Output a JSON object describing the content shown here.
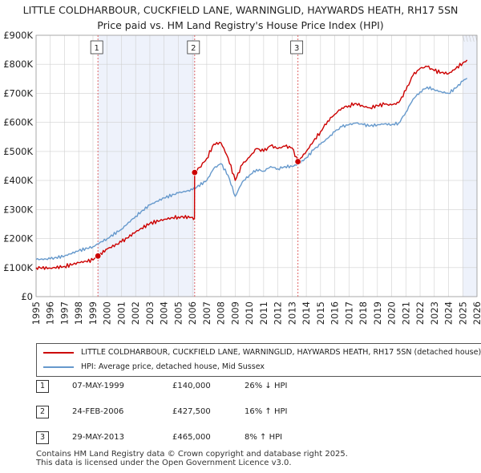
{
  "chart_data": {
    "type": "line",
    "title": "LITTLE COLDHARBOUR, CUCKFIELD LANE, WARNINGLID, HAYWARDS HEATH, RH17 5SN",
    "subtitle": "Price paid vs. HM Land Registry's House Price Index (HPI)",
    "x_ticks": [
      "1995",
      "1996",
      "1997",
      "1998",
      "1999",
      "2000",
      "2001",
      "2002",
      "2003",
      "2004",
      "2005",
      "2006",
      "2007",
      "2008",
      "2009",
      "2010",
      "2011",
      "2012",
      "2013",
      "2014",
      "2015",
      "2016",
      "2017",
      "2018",
      "2019",
      "2020",
      "2021",
      "2022",
      "2023",
      "2024",
      "2025",
      "2026"
    ],
    "y_ticks": [
      "£0",
      "£100K",
      "£200K",
      "£300K",
      "£400K",
      "£500K",
      "£600K",
      "£700K",
      "£800K",
      "£900K"
    ],
    "xlim": [
      1995,
      2026
    ],
    "ylim": [
      0,
      900000
    ],
    "grid": true,
    "series": [
      {
        "name": "LITTLE COLDHARBOUR, CUCKFIELD LANE, WARNINGLID, HAYWARDS HEATH, RH17 5SN (detached house)",
        "color": "#cc0000",
        "points": [
          [
            1995.0,
            100000
          ],
          [
            1996.0,
            98000
          ],
          [
            1997.0,
            104000
          ],
          [
            1998.0,
            117000
          ],
          [
            1999.0,
            126000
          ],
          [
            1999.35,
            140000
          ],
          [
            2000.0,
            164000
          ],
          [
            2001.0,
            188000
          ],
          [
            2002.0,
            223000
          ],
          [
            2003.0,
            252000
          ],
          [
            2004.0,
            266000
          ],
          [
            2005.0,
            275000
          ],
          [
            2006.0,
            273000
          ],
          [
            2006.14,
            270000
          ],
          [
            2006.15,
            427500
          ],
          [
            2006.5,
            445000
          ],
          [
            2007.0,
            476000
          ],
          [
            2007.5,
            525000
          ],
          [
            2008.0,
            530000
          ],
          [
            2008.5,
            478000
          ],
          [
            2009.0,
            400000
          ],
          [
            2009.5,
            455000
          ],
          [
            2010.0,
            480000
          ],
          [
            2010.5,
            510000
          ],
          [
            2011.0,
            500000
          ],
          [
            2011.5,
            520000
          ],
          [
            2012.0,
            510000
          ],
          [
            2012.5,
            518000
          ],
          [
            2013.0,
            512000
          ],
          [
            2013.41,
            465000
          ],
          [
            2014.0,
            500000
          ],
          [
            2014.5,
            535000
          ],
          [
            2015.0,
            568000
          ],
          [
            2015.5,
            605000
          ],
          [
            2016.0,
            628000
          ],
          [
            2016.5,
            650000
          ],
          [
            2017.0,
            658000
          ],
          [
            2017.5,
            665000
          ],
          [
            2018.0,
            655000
          ],
          [
            2018.5,
            650000
          ],
          [
            2019.0,
            658000
          ],
          [
            2019.5,
            662000
          ],
          [
            2020.0,
            660000
          ],
          [
            2020.5,
            668000
          ],
          [
            2021.0,
            710000
          ],
          [
            2021.5,
            762000
          ],
          [
            2022.0,
            786000
          ],
          [
            2022.5,
            792000
          ],
          [
            2023.0,
            778000
          ],
          [
            2023.5,
            772000
          ],
          [
            2024.0,
            768000
          ],
          [
            2024.5,
            785000
          ],
          [
            2025.0,
            805000
          ],
          [
            2025.3,
            815000
          ]
        ]
      },
      {
        "name": "HPI: Average price, detached house, Mid Sussex",
        "color": "#6699cc",
        "points": [
          [
            1995.0,
            128000
          ],
          [
            1996.0,
            130000
          ],
          [
            1997.0,
            140000
          ],
          [
            1998.0,
            158000
          ],
          [
            1999.0,
            172000
          ],
          [
            2000.0,
            200000
          ],
          [
            2001.0,
            232000
          ],
          [
            2002.0,
            277000
          ],
          [
            2003.0,
            316000
          ],
          [
            2004.0,
            340000
          ],
          [
            2005.0,
            357000
          ],
          [
            2006.0,
            368000
          ],
          [
            2007.0,
            400000
          ],
          [
            2007.5,
            442000
          ],
          [
            2008.0,
            458000
          ],
          [
            2008.5,
            418000
          ],
          [
            2009.0,
            345000
          ],
          [
            2009.5,
            395000
          ],
          [
            2010.0,
            418000
          ],
          [
            2010.5,
            438000
          ],
          [
            2011.0,
            432000
          ],
          [
            2011.5,
            448000
          ],
          [
            2012.0,
            440000
          ],
          [
            2012.5,
            448000
          ],
          [
            2013.0,
            448000
          ],
          [
            2013.5,
            458000
          ],
          [
            2014.0,
            478000
          ],
          [
            2014.5,
            505000
          ],
          [
            2015.0,
            525000
          ],
          [
            2015.5,
            545000
          ],
          [
            2016.0,
            568000
          ],
          [
            2016.5,
            585000
          ],
          [
            2017.0,
            592000
          ],
          [
            2017.5,
            598000
          ],
          [
            2018.0,
            592000
          ],
          [
            2018.5,
            588000
          ],
          [
            2019.0,
            592000
          ],
          [
            2019.5,
            595000
          ],
          [
            2020.0,
            592000
          ],
          [
            2020.5,
            598000
          ],
          [
            2021.0,
            635000
          ],
          [
            2021.5,
            680000
          ],
          [
            2022.0,
            705000
          ],
          [
            2022.5,
            722000
          ],
          [
            2023.0,
            712000
          ],
          [
            2023.5,
            705000
          ],
          [
            2024.0,
            700000
          ],
          [
            2024.5,
            718000
          ],
          [
            2025.0,
            742000
          ],
          [
            2025.3,
            752000
          ]
        ]
      }
    ],
    "transactions": [
      {
        "label": "1",
        "x": 1999.35,
        "price": 140000,
        "date": "07-MAY-1999",
        "price_text": "£140,000",
        "hpi_text": "26% ↓ HPI"
      },
      {
        "label": "2",
        "x": 2006.15,
        "price": 427500,
        "date": "24-FEB-2006",
        "price_text": "£427,500",
        "hpi_text": "16% ↑ HPI"
      },
      {
        "label": "3",
        "x": 2013.41,
        "price": 465000,
        "date": "29-MAY-2013",
        "price_text": "£465,000",
        "hpi_text": "8% ↑ HPI"
      }
    ],
    "shaded_regions": [
      [
        1999.35,
        2006.15
      ],
      [
        2025.0,
        2026.0
      ]
    ]
  },
  "legend": {
    "red_label": "LITTLE COLDHARBOUR, CUCKFIELD LANE, WARNINGLID, HAYWARDS HEATH, RH17 5SN (detached house)",
    "blue_label": "HPI: Average price, detached house, Mid Sussex"
  },
  "footer": {
    "line1": "Contains HM Land Registry data © Crown copyright and database right 2025.",
    "line2": "This data is licensed under the Open Government Licence v3.0."
  }
}
